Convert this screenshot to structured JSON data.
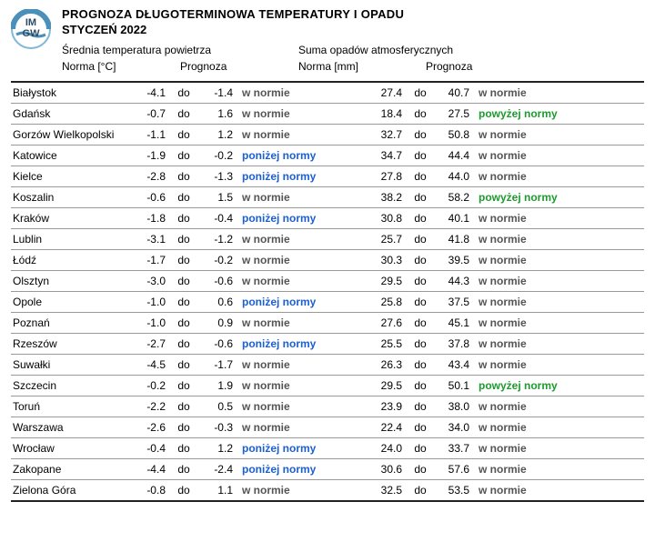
{
  "header": {
    "title": "PROGNOZA DŁUGOTERMINOWA TEMPERATURY I OPADU",
    "subtitle": "STYCZEŃ 2022",
    "temp_section": "Średnia temperatura powietrza",
    "prec_section": "Suma opadów atmosferycznych",
    "norma_temp": "Norma  [°C]",
    "prognoza": "Prognoza",
    "norma_prec": "Norma [mm]"
  },
  "word_do": "do",
  "status_labels": {
    "norm": "w normie",
    "below": "poniżej normy",
    "above": "powyżej normy"
  },
  "palette": {
    "norm_color": "#555555",
    "below_color": "#1a5fd6",
    "above_color": "#1c9b2e",
    "rule_color": "#222222",
    "row_rule_color": "#999999"
  },
  "logo": {
    "letters": "IM GW",
    "ring1": "#7fb8d8",
    "ring2": "#4a90b8",
    "text_color": "#2a4a66"
  },
  "rows": [
    {
      "city": "Białystok",
      "t_lo": "-4.1",
      "t_hi": "-1.4",
      "t_stat": "norm",
      "p_lo": "27.4",
      "p_hi": "40.7",
      "p_stat": "norm"
    },
    {
      "city": "Gdańsk",
      "t_lo": "-0.7",
      "t_hi": "1.6",
      "t_stat": "norm",
      "p_lo": "18.4",
      "p_hi": "27.5",
      "p_stat": "above"
    },
    {
      "city": "Gorzów Wielkopolski",
      "t_lo": "-1.1",
      "t_hi": "1.2",
      "t_stat": "norm",
      "p_lo": "32.7",
      "p_hi": "50.8",
      "p_stat": "norm"
    },
    {
      "city": "Katowice",
      "t_lo": "-1.9",
      "t_hi": "-0.2",
      "t_stat": "below",
      "p_lo": "34.7",
      "p_hi": "44.4",
      "p_stat": "norm"
    },
    {
      "city": "Kielce",
      "t_lo": "-2.8",
      "t_hi": "-1.3",
      "t_stat": "below",
      "p_lo": "27.8",
      "p_hi": "44.0",
      "p_stat": "norm"
    },
    {
      "city": "Koszalin",
      "t_lo": "-0.6",
      "t_hi": "1.5",
      "t_stat": "norm",
      "p_lo": "38.2",
      "p_hi": "58.2",
      "p_stat": "above"
    },
    {
      "city": "Kraków",
      "t_lo": "-1.8",
      "t_hi": "-0.4",
      "t_stat": "below",
      "p_lo": "30.8",
      "p_hi": "40.1",
      "p_stat": "norm"
    },
    {
      "city": "Lublin",
      "t_lo": "-3.1",
      "t_hi": "-1.2",
      "t_stat": "norm",
      "p_lo": "25.7",
      "p_hi": "41.8",
      "p_stat": "norm"
    },
    {
      "city": "Łódź",
      "t_lo": "-1.7",
      "t_hi": "-0.2",
      "t_stat": "norm",
      "p_lo": "30.3",
      "p_hi": "39.5",
      "p_stat": "norm"
    },
    {
      "city": "Olsztyn",
      "t_lo": "-3.0",
      "t_hi": "-0.6",
      "t_stat": "norm",
      "p_lo": "29.5",
      "p_hi": "44.3",
      "p_stat": "norm"
    },
    {
      "city": "Opole",
      "t_lo": "-1.0",
      "t_hi": "0.6",
      "t_stat": "below",
      "p_lo": "25.8",
      "p_hi": "37.5",
      "p_stat": "norm"
    },
    {
      "city": "Poznań",
      "t_lo": "-1.0",
      "t_hi": "0.9",
      "t_stat": "norm",
      "p_lo": "27.6",
      "p_hi": "45.1",
      "p_stat": "norm"
    },
    {
      "city": "Rzeszów",
      "t_lo": "-2.7",
      "t_hi": "-0.6",
      "t_stat": "below",
      "p_lo": "25.5",
      "p_hi": "37.8",
      "p_stat": "norm"
    },
    {
      "city": "Suwałki",
      "t_lo": "-4.5",
      "t_hi": "-1.7",
      "t_stat": "norm",
      "p_lo": "26.3",
      "p_hi": "43.4",
      "p_stat": "norm"
    },
    {
      "city": "Szczecin",
      "t_lo": "-0.2",
      "t_hi": "1.9",
      "t_stat": "norm",
      "p_lo": "29.5",
      "p_hi": "50.1",
      "p_stat": "above"
    },
    {
      "city": "Toruń",
      "t_lo": "-2.2",
      "t_hi": "0.5",
      "t_stat": "norm",
      "p_lo": "23.9",
      "p_hi": "38.0",
      "p_stat": "norm"
    },
    {
      "city": "Warszawa",
      "t_lo": "-2.6",
      "t_hi": "-0.3",
      "t_stat": "norm",
      "p_lo": "22.4",
      "p_hi": "34.0",
      "p_stat": "norm"
    },
    {
      "city": "Wrocław",
      "t_lo": "-0.4",
      "t_hi": "1.2",
      "t_stat": "below",
      "p_lo": "24.0",
      "p_hi": "33.7",
      "p_stat": "norm"
    },
    {
      "city": "Zakopane",
      "t_lo": "-4.4",
      "t_hi": "-2.4",
      "t_stat": "below",
      "p_lo": "30.6",
      "p_hi": "57.6",
      "p_stat": "norm"
    },
    {
      "city": "Zielona Góra",
      "t_lo": "-0.8",
      "t_hi": "1.1",
      "t_stat": "norm",
      "p_lo": "32.5",
      "p_hi": "53.5",
      "p_stat": "norm"
    }
  ]
}
